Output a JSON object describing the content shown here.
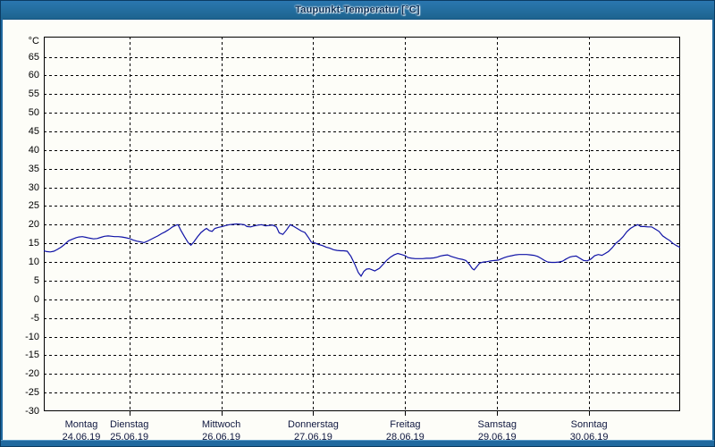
{
  "window": {
    "title": "Taupunkt-Temperatur [°C]"
  },
  "colors": {
    "titlebar_bg": "#20699f",
    "titlebar_text": "#0a2f57",
    "window_border": "#0b3c63",
    "plot_bg": "#fdfdf8",
    "grid": "#000000",
    "axis": "#000000",
    "line": "#0f12a6",
    "tick_label": "#000000",
    "day_label": "#101840"
  },
  "chart_data": {
    "type": "line",
    "title": "Taupunkt-Temperatur [°C]",
    "ylabel": "°C",
    "ylim": [
      -30,
      70.4
    ],
    "y_ticks": [
      65,
      60,
      55,
      50,
      45,
      40,
      35,
      30,
      25,
      20,
      15,
      10,
      5,
      0,
      -5,
      -10,
      -15,
      -20,
      -25,
      -30
    ],
    "grid": "dashed",
    "x_domain_days": [
      0.07,
      6.99
    ],
    "x_ticks": [
      {
        "day": "Montag",
        "date": "24.06.19",
        "t": 0
      },
      {
        "day": "Dienstag",
        "date": "25.06.19",
        "t": 1
      },
      {
        "day": "Mittwoch",
        "date": "26.06.19",
        "t": 2
      },
      {
        "day": "Donnerstag",
        "date": "27.06.19",
        "t": 3
      },
      {
        "day": "Freitag",
        "date": "28.06.19",
        "t": 4
      },
      {
        "day": "Samstag",
        "date": "29.06.19",
        "t": 5
      },
      {
        "day": "Sonntag",
        "date": "30.06.19",
        "t": 6
      }
    ],
    "series": [
      {
        "name": "Taupunkt",
        "color": "#0f12a6",
        "points": [
          [
            0.07,
            13.0
          ],
          [
            0.1,
            12.8
          ],
          [
            0.14,
            12.7
          ],
          [
            0.18,
            12.9
          ],
          [
            0.22,
            13.4
          ],
          [
            0.26,
            14.0
          ],
          [
            0.3,
            14.8
          ],
          [
            0.34,
            15.7
          ],
          [
            0.38,
            16.1
          ],
          [
            0.42,
            16.5
          ],
          [
            0.45,
            16.7
          ],
          [
            0.49,
            16.8
          ],
          [
            0.53,
            16.6
          ],
          [
            0.57,
            16.4
          ],
          [
            0.61,
            16.2
          ],
          [
            0.65,
            16.3
          ],
          [
            0.69,
            16.6
          ],
          [
            0.73,
            16.9
          ],
          [
            0.77,
            17.0
          ],
          [
            0.81,
            16.9
          ],
          [
            0.84,
            16.8
          ],
          [
            0.88,
            16.8
          ],
          [
            0.92,
            16.7
          ],
          [
            0.96,
            16.5
          ],
          [
            1.0,
            16.3
          ],
          [
            1.04,
            15.9
          ],
          [
            1.08,
            15.6
          ],
          [
            1.12,
            15.4
          ],
          [
            1.16,
            15.2
          ],
          [
            1.19,
            15.5
          ],
          [
            1.23,
            16.0
          ],
          [
            1.27,
            16.5
          ],
          [
            1.31,
            17.0
          ],
          [
            1.35,
            17.6
          ],
          [
            1.39,
            18.1
          ],
          [
            1.43,
            18.7
          ],
          [
            1.47,
            19.4
          ],
          [
            1.51,
            19.9
          ],
          [
            1.53,
            20.0
          ],
          [
            1.56,
            18.5
          ],
          [
            1.6,
            16.8
          ],
          [
            1.64,
            15.2
          ],
          [
            1.67,
            14.5
          ],
          [
            1.7,
            15.3
          ],
          [
            1.74,
            16.7
          ],
          [
            1.78,
            17.9
          ],
          [
            1.82,
            18.7
          ],
          [
            1.84,
            19.0
          ],
          [
            1.87,
            18.4
          ],
          [
            1.9,
            18.2
          ],
          [
            1.93,
            19.0
          ],
          [
            1.97,
            19.3
          ],
          [
            2.01,
            19.5
          ],
          [
            2.05,
            19.8
          ],
          [
            2.09,
            20.0
          ],
          [
            2.13,
            20.1
          ],
          [
            2.17,
            20.2
          ],
          [
            2.21,
            20.1
          ],
          [
            2.25,
            20.0
          ],
          [
            2.28,
            19.5
          ],
          [
            2.32,
            19.4
          ],
          [
            2.36,
            19.7
          ],
          [
            2.4,
            19.9
          ],
          [
            2.44,
            20.0
          ],
          [
            2.48,
            19.7
          ],
          [
            2.52,
            19.8
          ],
          [
            2.56,
            19.9
          ],
          [
            2.6,
            19.4
          ],
          [
            2.63,
            17.8
          ],
          [
            2.67,
            17.4
          ],
          [
            2.71,
            18.6
          ],
          [
            2.75,
            20.0
          ],
          [
            2.79,
            19.5
          ],
          [
            2.83,
            18.9
          ],
          [
            2.87,
            18.3
          ],
          [
            2.91,
            17.9
          ],
          [
            2.95,
            16.5
          ],
          [
            2.98,
            15.3
          ],
          [
            3.02,
            15.1
          ],
          [
            3.06,
            14.7
          ],
          [
            3.1,
            14.4
          ],
          [
            3.14,
            14.0
          ],
          [
            3.18,
            13.7
          ],
          [
            3.22,
            13.3
          ],
          [
            3.26,
            13.1
          ],
          [
            3.3,
            13.0
          ],
          [
            3.33,
            13.0
          ],
          [
            3.37,
            12.9
          ],
          [
            3.41,
            11.5
          ],
          [
            3.45,
            9.5
          ],
          [
            3.49,
            7.2
          ],
          [
            3.52,
            6.2
          ],
          [
            3.55,
            7.5
          ],
          [
            3.58,
            8.1
          ],
          [
            3.61,
            8.2
          ],
          [
            3.64,
            7.9
          ],
          [
            3.67,
            7.6
          ],
          [
            3.69,
            7.9
          ],
          [
            3.72,
            8.3
          ],
          [
            3.76,
            9.4
          ],
          [
            3.8,
            10.5
          ],
          [
            3.84,
            11.3
          ],
          [
            3.88,
            11.9
          ],
          [
            3.92,
            12.3
          ],
          [
            3.96,
            12.0
          ],
          [
            4.0,
            11.7
          ],
          [
            4.03,
            11.2
          ],
          [
            4.07,
            11.0
          ],
          [
            4.11,
            10.9
          ],
          [
            4.15,
            10.9
          ],
          [
            4.19,
            10.9
          ],
          [
            4.23,
            11.0
          ],
          [
            4.27,
            11.0
          ],
          [
            4.31,
            11.1
          ],
          [
            4.35,
            11.3
          ],
          [
            4.38,
            11.6
          ],
          [
            4.42,
            11.8
          ],
          [
            4.46,
            11.9
          ],
          [
            4.5,
            11.5
          ],
          [
            4.54,
            11.2
          ],
          [
            4.58,
            10.9
          ],
          [
            4.62,
            10.7
          ],
          [
            4.66,
            10.4
          ],
          [
            4.7,
            9.3
          ],
          [
            4.73,
            8.2
          ],
          [
            4.75,
            7.9
          ],
          [
            4.78,
            8.8
          ],
          [
            4.81,
            9.7
          ],
          [
            4.85,
            10.0
          ],
          [
            4.89,
            10.1
          ],
          [
            4.93,
            10.3
          ],
          [
            4.97,
            10.4
          ],
          [
            5.01,
            10.5
          ],
          [
            5.05,
            10.9
          ],
          [
            5.08,
            11.2
          ],
          [
            5.12,
            11.5
          ],
          [
            5.16,
            11.7
          ],
          [
            5.2,
            11.9
          ],
          [
            5.24,
            12.0
          ],
          [
            5.28,
            12.0
          ],
          [
            5.32,
            12.0
          ],
          [
            5.36,
            11.9
          ],
          [
            5.4,
            11.8
          ],
          [
            5.44,
            11.5
          ],
          [
            5.47,
            11.1
          ],
          [
            5.51,
            10.5
          ],
          [
            5.55,
            10.0
          ],
          [
            5.59,
            9.9
          ],
          [
            5.63,
            9.9
          ],
          [
            5.67,
            10.0
          ],
          [
            5.71,
            10.2
          ],
          [
            5.75,
            10.8
          ],
          [
            5.79,
            11.3
          ],
          [
            5.82,
            11.5
          ],
          [
            5.86,
            11.6
          ],
          [
            5.9,
            11.0
          ],
          [
            5.94,
            10.4
          ],
          [
            5.98,
            10.3
          ],
          [
            6.02,
            10.8
          ],
          [
            6.06,
            11.7
          ],
          [
            6.1,
            12.0
          ],
          [
            6.14,
            11.8
          ],
          [
            6.17,
            12.2
          ],
          [
            6.21,
            12.8
          ],
          [
            6.25,
            13.8
          ],
          [
            6.29,
            15.0
          ],
          [
            6.33,
            15.8
          ],
          [
            6.37,
            16.8
          ],
          [
            6.41,
            18.1
          ],
          [
            6.45,
            19.0
          ],
          [
            6.49,
            19.6
          ],
          [
            6.53,
            20.0
          ],
          [
            6.56,
            19.5
          ],
          [
            6.6,
            19.5
          ],
          [
            6.64,
            19.4
          ],
          [
            6.68,
            19.4
          ],
          [
            6.72,
            18.8
          ],
          [
            6.76,
            18.2
          ],
          [
            6.8,
            17.0
          ],
          [
            6.84,
            16.3
          ],
          [
            6.88,
            15.7
          ],
          [
            6.91,
            15.0
          ],
          [
            6.95,
            14.4
          ],
          [
            6.99,
            13.9
          ]
        ]
      }
    ]
  }
}
